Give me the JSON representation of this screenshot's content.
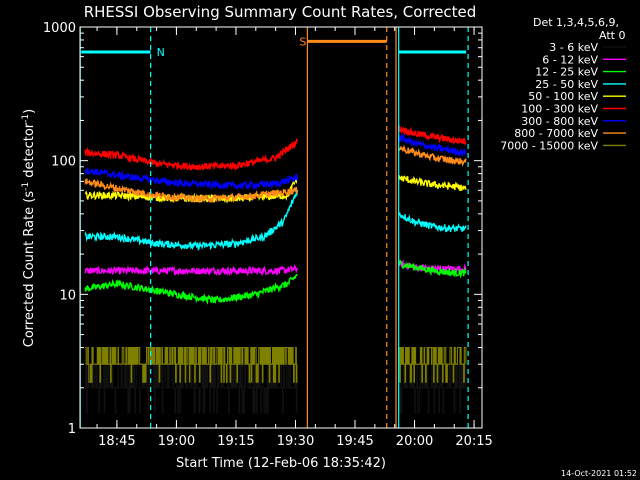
{
  "chart_data": {
    "type": "line",
    "title": "RHESSI Observing Summary Count Rates, Corrected",
    "xlabel": "Start Time (12-Feb-06 18:35:42)",
    "ylabel_main": "Corrected Count Rate (s",
    "ylabel_sup1": "-1",
    "ylabel_mid": " detector",
    "ylabel_sup2": "-1",
    "ylabel_end": ")",
    "y_scale": "log",
    "ylim": [
      1,
      1000
    ],
    "xlim": [
      "18:35:42",
      "20:17:00"
    ],
    "x_ticks": [
      {
        "t": "18:45",
        "label": "18:45"
      },
      {
        "t": "19:00",
        "label": "19:00"
      },
      {
        "t": "19:15",
        "label": "19:15"
      },
      {
        "t": "19:30",
        "label": "19:30"
      },
      {
        "t": "19:45",
        "label": "19:45"
      },
      {
        "t": "20:00",
        "label": "20:00"
      },
      {
        "t": "20:15",
        "label": "20:15"
      }
    ],
    "y_ticks": [
      {
        "v": 1,
        "label": "1"
      },
      {
        "v": 10,
        "label": "10"
      },
      {
        "v": 100,
        "label": "100"
      },
      {
        "v": 1000,
        "label": "1000"
      }
    ],
    "legend_header": [
      "Det 1,3,4,5,6,9,",
      "Att 0"
    ],
    "legend_position": "right",
    "gap": [
      "19:31:00",
      "19:55:00"
    ],
    "series": [
      {
        "name": "3 - 6 keV",
        "color": "#000000",
        "segments": [
          {
            "t": [
              "18:37:00",
              "18:45:00",
              "19:00:00",
              "19:15:00",
              "19:27:00",
              "19:30:30"
            ],
            "v": [
              2.7,
              2.5,
              2.6,
              2.4,
              2.6,
              2.7
            ]
          },
          {
            "t": [
              "19:56:00",
              "20:00:00",
              "20:05:00",
              "20:10:00",
              "20:13:00"
            ],
            "v": [
              2.6,
              2.5,
              2.6,
              2.6,
              2.7
            ]
          }
        ]
      },
      {
        "name": "6 - 12 keV",
        "color": "#ff00ff",
        "segments": [
          {
            "t": [
              "18:37:00",
              "18:45:00",
              "19:00:00",
              "19:15:00",
              "19:25:00",
              "19:30:30"
            ],
            "v": [
              15,
              15,
              15,
              15,
              15,
              15.5
            ]
          },
          {
            "t": [
              "19:56:00",
              "20:00:00",
              "20:05:00",
              "20:10:00",
              "20:13:00"
            ],
            "v": [
              17,
              16,
              15.5,
              15.5,
              15.5
            ]
          }
        ]
      },
      {
        "name": "12 - 25 keV",
        "color": "#00ff00",
        "segments": [
          {
            "t": [
              "18:37:00",
              "18:45:00",
              "19:00:00",
              "19:10:00",
              "19:20:00",
              "19:28:00",
              "19:30:30"
            ],
            "v": [
              11,
              12,
              10,
              9,
              10,
              12,
              14
            ]
          },
          {
            "t": [
              "19:56:00",
              "20:00:00",
              "20:05:00",
              "20:10:00",
              "20:13:00"
            ],
            "v": [
              17,
              16,
              15,
              14.5,
              14.5
            ]
          }
        ]
      },
      {
        "name": "25 - 50 keV",
        "color": "#00ffff",
        "segments": [
          {
            "t": [
              "18:37:00",
              "18:45:00",
              "18:55:00",
              "19:05:00",
              "19:15:00",
              "19:22:00",
              "19:27:00",
              "19:30:30"
            ],
            "v": [
              27,
              27,
              24,
              23,
              24,
              27,
              35,
              60
            ]
          },
          {
            "t": [
              "19:56:00",
              "20:00:00",
              "20:05:00",
              "20:10:00",
              "20:13:00"
            ],
            "v": [
              40,
              35,
              32,
              31,
              31
            ]
          }
        ]
      },
      {
        "name": "50 - 100 keV",
        "color": "#ffff00",
        "segments": [
          {
            "t": [
              "18:37:00",
              "18:45:00",
              "19:00:00",
              "19:15:00",
              "19:28:00",
              "19:30:30"
            ],
            "v": [
              55,
              55,
              52,
              52,
              55,
              75
            ]
          },
          {
            "t": [
              "19:56:00",
              "20:00:00",
              "20:05:00",
              "20:10:00",
              "20:13:00"
            ],
            "v": [
              75,
              70,
              66,
              64,
              62
            ]
          }
        ]
      },
      {
        "name": "100 - 300 keV",
        "color": "#ff0000",
        "segments": [
          {
            "t": [
              "18:37:00",
              "18:45:00",
              "18:55:00",
              "19:05:00",
              "19:15:00",
              "19:25:00",
              "19:30:30"
            ],
            "v": [
              115,
              110,
              95,
              90,
              92,
              105,
              140
            ]
          },
          {
            "t": [
              "19:56:00",
              "20:00:00",
              "20:05:00",
              "20:10:00",
              "20:13:00"
            ],
            "v": [
              175,
              160,
              150,
              142,
              140
            ]
          }
        ]
      },
      {
        "name": "300 - 800 keV",
        "color": "#0000ff",
        "segments": [
          {
            "t": [
              "18:37:00",
              "18:45:00",
              "19:00:00",
              "19:15:00",
              "19:25:00",
              "19:30:30"
            ],
            "v": [
              85,
              78,
              68,
              65,
              67,
              75
            ]
          },
          {
            "t": [
              "19:56:00",
              "20:00:00",
              "20:05:00",
              "20:10:00",
              "20:13:00"
            ],
            "v": [
              150,
              135,
              125,
              118,
              115
            ]
          }
        ]
      },
      {
        "name": "800 - 7000 keV",
        "color": "#ff8c1a",
        "segments": [
          {
            "t": [
              "18:37:00",
              "18:45:00",
              "18:55:00",
              "19:05:00",
              "19:15:00",
              "19:25:00",
              "19:30:30"
            ],
            "v": [
              70,
              62,
              55,
              52,
              53,
              57,
              60
            ]
          },
          {
            "t": [
              "19:56:00",
              "20:00:00",
              "20:05:00",
              "20:10:00",
              "20:13:00"
            ],
            "v": [
              125,
              115,
              105,
              100,
              98
            ]
          }
        ]
      },
      {
        "name": "7000 - 15000 keV",
        "color": "#808000",
        "segments": [
          {
            "t": [
              "18:37:00",
              "18:45:00",
              "19:00:00",
              "19:15:00",
              "19:27:00",
              "19:30:30"
            ],
            "v": [
              3.4,
              3.2,
              3.3,
              3.2,
              3.3,
              3.4
            ]
          },
          {
            "t": [
              "19:56:00",
              "20:00:00",
              "20:05:00",
              "20:10:00",
              "20:13:00"
            ],
            "v": [
              3.3,
              3.2,
              3.3,
              3.3,
              3.4
            ]
          }
        ]
      }
    ],
    "annotations": [
      {
        "type": "cyan_bar",
        "from": "18:36:00",
        "to": "18:53:30",
        "v": 650,
        "label": "N",
        "color": "#00ffff"
      },
      {
        "type": "orange_bar",
        "from": "19:33:00",
        "to": "19:53:00",
        "v": 780,
        "label": "S",
        "color": "#ff8c1a"
      },
      {
        "type": "cyan_bar",
        "from": "19:56:00",
        "to": "20:13:00",
        "v": 650,
        "label": "",
        "color": "#00ffff"
      },
      {
        "type": "vline",
        "t": "18:35:45",
        "color": "#00ffff",
        "style": "solid"
      },
      {
        "type": "vline",
        "t": "18:53:30",
        "color": "#00ffff",
        "style": "dashed"
      },
      {
        "type": "vline",
        "t": "19:33:00",
        "color": "#ff8c1a",
        "style": "solid"
      },
      {
        "type": "vline",
        "t": "19:53:00",
        "color": "#ff8c1a",
        "style": "dashed"
      },
      {
        "type": "vline",
        "t": "19:55:20",
        "color": "#ff8c1a",
        "style": "solid"
      },
      {
        "type": "vline",
        "t": "19:56:00",
        "color": "#00ffff",
        "style": "solid"
      },
      {
        "type": "vline",
        "t": "20:13:30",
        "color": "#00ffff",
        "style": "dashed"
      }
    ]
  },
  "footer_timestamp": "14-Oct-2021 01:52"
}
